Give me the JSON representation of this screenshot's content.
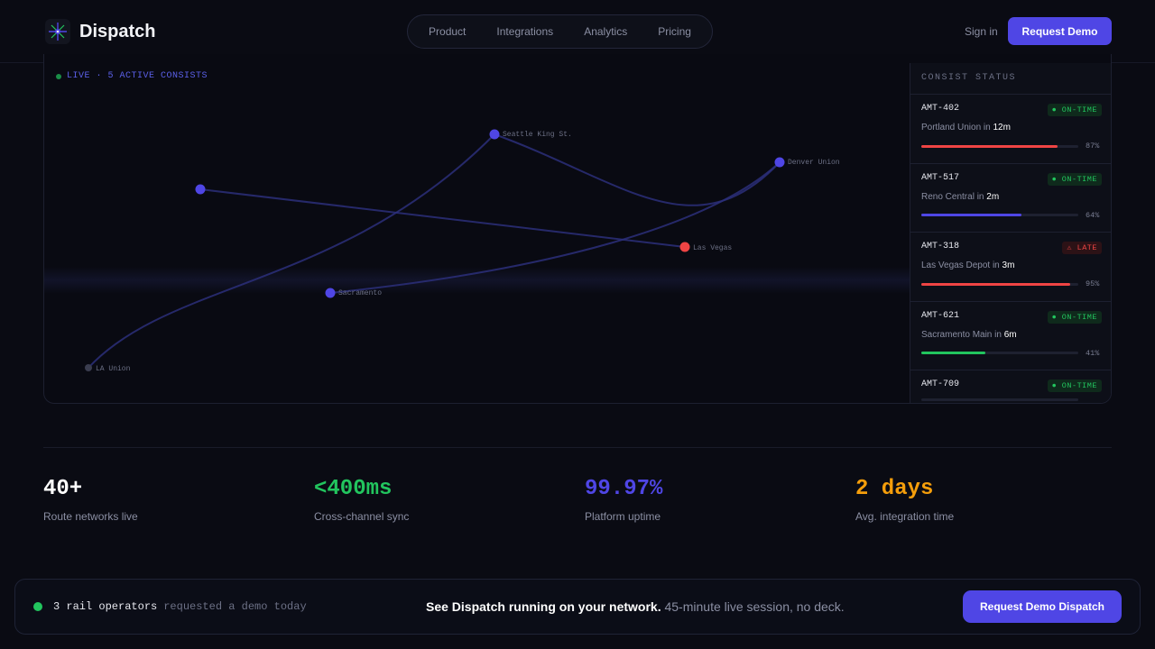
{
  "header": {
    "brand": "Dispatch",
    "nav": [
      "Product",
      "Integrations",
      "Analytics",
      "Pricing"
    ],
    "sign_in": "Sign in",
    "cta": "Request Demo"
  },
  "map": {
    "live_label": "LIVE · 5 ACTIVE CONSISTS",
    "stations": [
      {
        "label": "Seattle King St.",
        "color": "#4f46e5"
      },
      {
        "label": "Denver Union",
        "color": "#4f46e5"
      },
      {
        "label": "",
        "color": "#4f46e5"
      },
      {
        "label": "Las Vegas",
        "color": "#ef4444"
      },
      {
        "label": "Sacramento",
        "color": "#4f46e5"
      },
      {
        "label": "LA Union",
        "color": "#3a3d4f"
      }
    ]
  },
  "status": {
    "title": "CONSIST STATUS",
    "consists": [
      {
        "id": "AMT-402",
        "badge": "● ON-TIME",
        "state": "ok",
        "dest": "Portland Union in",
        "eta": "12m",
        "progress": 0.87,
        "pct": "87%",
        "color": "#ef4444"
      },
      {
        "id": "AMT-517",
        "badge": "● ON-TIME",
        "state": "ok",
        "dest": "Reno Central in",
        "eta": "2m",
        "progress": 0.64,
        "pct": "64%",
        "color": "#4f46e5"
      },
      {
        "id": "AMT-318",
        "badge": "⚠ LATE",
        "state": "late",
        "dest": "Las Vegas Depot in",
        "eta": "3m",
        "progress": 0.95,
        "pct": "95%",
        "color": "#ef4444"
      },
      {
        "id": "AMT-621",
        "badge": "● ON-TIME",
        "state": "ok",
        "dest": "Sacramento Main in",
        "eta": "6m",
        "progress": 0.41,
        "pct": "41%",
        "color": "#22c55e"
      },
      {
        "id": "AMT-709",
        "badge": "● ON-TIME",
        "state": "ok",
        "dest": "",
        "eta": "",
        "progress": 0,
        "pct": "",
        "color": "#4f46e5"
      }
    ]
  },
  "stats": [
    {
      "value": "40+",
      "label": "Route networks live",
      "color": "#ffffff"
    },
    {
      "value": "<400ms",
      "label": "Cross-channel sync",
      "color": "#22c55e"
    },
    {
      "value": "99.97%",
      "label": "Platform uptime",
      "color": "#4f46e5"
    },
    {
      "value": "2 days",
      "label": "Avg. integration time",
      "color": "#f59e0b"
    }
  ],
  "cta_bar": {
    "operators": "3 rail operators",
    "requested": "requested a demo today",
    "headline": "See Dispatch running on your network.",
    "sub": "45-minute live session, no deck.",
    "button": "Request Demo Dispatch"
  }
}
